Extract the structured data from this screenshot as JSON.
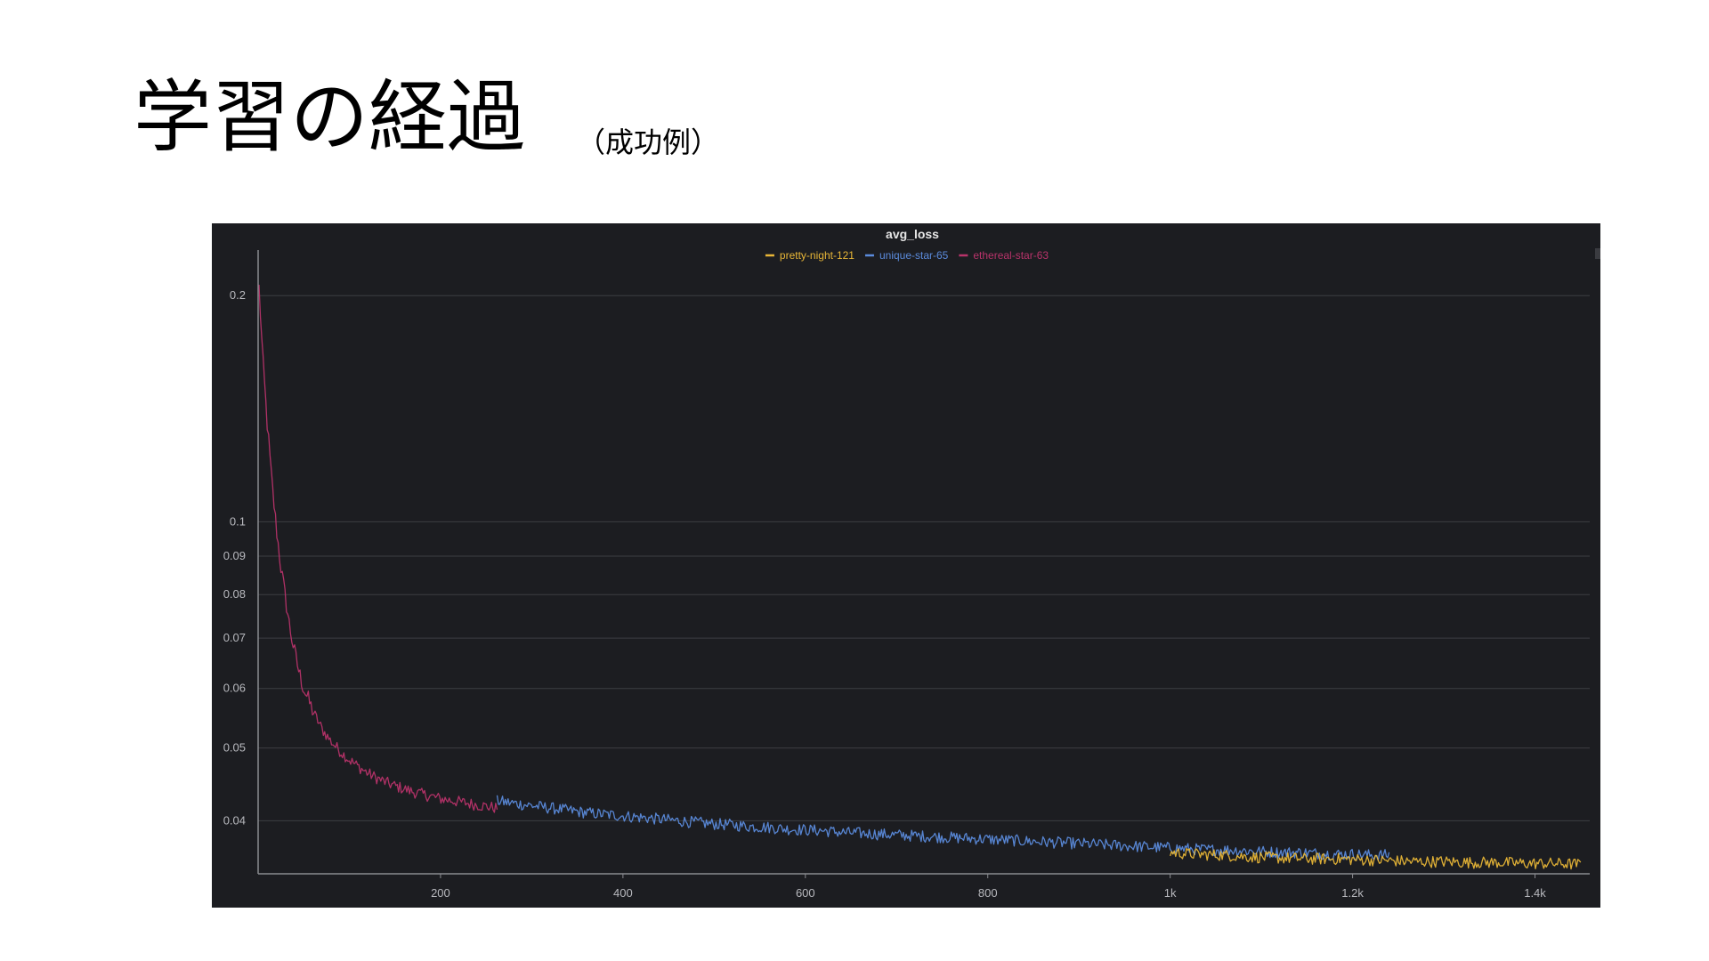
{
  "slide": {
    "title": "学習の経過",
    "subtitle": "（成功例）"
  },
  "colors": {
    "background": "#1c1d21",
    "grid": "#3d3e43",
    "axis": "#8a8b90",
    "text": "#b8b9be",
    "title_text": "#e6e6e6"
  },
  "chart_data": {
    "type": "line",
    "title": "avg_loss",
    "xlabel": "",
    "ylabel": "",
    "x_scale": "linear",
    "y_scale": "log",
    "xlim": [
      0,
      1460
    ],
    "ylim": [
      0.034,
      0.225
    ],
    "x_ticks": [
      {
        "value": 200,
        "label": "200"
      },
      {
        "value": 400,
        "label": "400"
      },
      {
        "value": 600,
        "label": "600"
      },
      {
        "value": 800,
        "label": "800"
      },
      {
        "value": 1000,
        "label": "1k"
      },
      {
        "value": 1200,
        "label": "1.2k"
      },
      {
        "value": 1400,
        "label": "1.4k"
      }
    ],
    "y_ticks": [
      {
        "value": 0.2,
        "label": "0.2"
      },
      {
        "value": 0.1,
        "label": "0.1"
      },
      {
        "value": 0.09,
        "label": "0.09"
      },
      {
        "value": 0.08,
        "label": "0.08"
      },
      {
        "value": 0.07,
        "label": "0.07"
      },
      {
        "value": 0.06,
        "label": "0.06"
      },
      {
        "value": 0.05,
        "label": "0.05"
      },
      {
        "value": 0.04,
        "label": "0.04"
      }
    ],
    "grid": "horizontal",
    "legend_position": "top-center",
    "series": [
      {
        "name": "pretty-night-121",
        "color": "#e8b637",
        "x": [
          1000,
          1030,
          1060,
          1090,
          1120,
          1150,
          1180,
          1210,
          1240,
          1270,
          1300,
          1330,
          1360,
          1390,
          1420,
          1450
        ],
        "y": [
          0.0363,
          0.0361,
          0.036,
          0.0358,
          0.0357,
          0.0356,
          0.0356,
          0.0355,
          0.0354,
          0.0353,
          0.0353,
          0.0352,
          0.0352,
          0.0351,
          0.0351,
          0.035
        ]
      },
      {
        "name": "unique-star-65",
        "color": "#5b8bdc",
        "x": [
          262,
          280,
          300,
          320,
          340,
          360,
          380,
          400,
          420,
          440,
          460,
          480,
          500,
          520,
          540,
          560,
          580,
          600,
          620,
          640,
          660,
          680,
          700,
          720,
          740,
          760,
          780,
          800,
          820,
          840,
          860,
          880,
          900,
          920,
          940,
          960,
          980,
          1000,
          1020,
          1040,
          1060,
          1080,
          1100,
          1120,
          1140,
          1160,
          1180,
          1200,
          1220,
          1240
        ],
        "y": [
          0.0425,
          0.0422,
          0.0419,
          0.0416,
          0.0413,
          0.041,
          0.0408,
          0.0406,
          0.0404,
          0.0402,
          0.04,
          0.0398,
          0.0396,
          0.0395,
          0.0393,
          0.0392,
          0.039,
          0.0389,
          0.0388,
          0.0386,
          0.0385,
          0.0384,
          0.0383,
          0.0382,
          0.0381,
          0.038,
          0.0379,
          0.0378,
          0.0377,
          0.0376,
          0.0375,
          0.0374,
          0.0373,
          0.0372,
          0.0371,
          0.037,
          0.0369,
          0.0368,
          0.0367,
          0.0366,
          0.0366,
          0.0365,
          0.0364,
          0.0363,
          0.0363,
          0.0362,
          0.0361,
          0.0361,
          0.036,
          0.036
        ]
      },
      {
        "name": "ethereal-star-63",
        "color": "#b8336a",
        "x": [
          1,
          5,
          10,
          15,
          20,
          25,
          30,
          35,
          40,
          45,
          50,
          60,
          70,
          80,
          90,
          100,
          110,
          120,
          130,
          140,
          150,
          160,
          170,
          180,
          190,
          200,
          210,
          220,
          230,
          240,
          250,
          262
        ],
        "y": [
          0.205,
          0.165,
          0.135,
          0.113,
          0.098,
          0.087,
          0.079,
          0.072,
          0.067,
          0.063,
          0.06,
          0.056,
          0.053,
          0.051,
          0.0495,
          0.0482,
          0.0472,
          0.0463,
          0.0456,
          0.045,
          0.0445,
          0.0441,
          0.0437,
          0.0434,
          0.0431,
          0.0428,
          0.0426,
          0.0424,
          0.0422,
          0.042,
          0.0418,
          0.0416
        ]
      }
    ]
  }
}
